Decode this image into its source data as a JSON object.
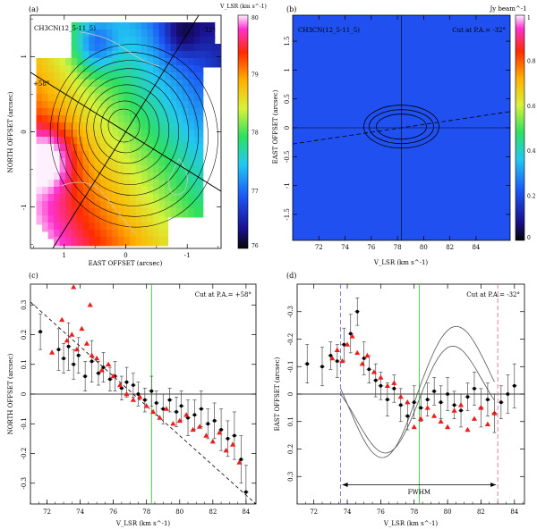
{
  "chart_data": [
    {
      "panel": "(a)",
      "type": "heatmap",
      "label": "CH3CN(12_5-11_5)",
      "xlabel": "EAST OFFSET (arcsec)",
      "ylabel": "NORTH OFFSET (arcsec)",
      "xlim": [
        1.55,
        -1.55
      ],
      "ylim": [
        -1.55,
        1.55
      ],
      "xticks": [
        "1",
        "0",
        "-1"
      ],
      "yticks": [
        "1",
        "0",
        "-1"
      ],
      "colorbar_title": "V_LSR (km s^-1)",
      "colorbar_range": [
        76,
        80
      ],
      "colorbar_ticks": [
        "80",
        "79",
        "78",
        "77",
        "76"
      ],
      "cut_labels": [
        "+58°",
        "-32°"
      ],
      "cut_angles_deg": [
        58,
        -32
      ],
      "velocity_field": {
        "x": [
          -1.3,
          -1.0,
          -0.6,
          -0.2,
          0.2,
          0.6,
          1.0,
          1.3
        ],
        "y": [
          1.4,
          1.0,
          0.6,
          0.2,
          -0.2,
          -0.6,
          -1.0,
          -1.4
        ],
        "note": "approx. velocities read from the color scale; red/magenta to the east/south-east (~79.5-80), blue to the north (~77)"
      }
    },
    {
      "panel": "(b)",
      "type": "heatmap",
      "label": "CH3CN(12_5-11_5)",
      "annotation": "Cut at P.A.= -32°",
      "xlabel": "V_LSR (km s^-1)",
      "ylabel": "EAST OFFSET (arcsec)",
      "xlim": [
        70.0,
        86.6
      ],
      "ylim": [
        1.95,
        -1.95
      ],
      "xticks": [
        "72",
        "74",
        "76",
        "78",
        "80",
        "82",
        "84"
      ],
      "yticks": [
        "-1.5",
        "-1",
        "-0.5",
        "0",
        "0.5",
        "1",
        "1.5"
      ],
      "colorbar_title": "Jy beam^-1",
      "colorbar_range": [
        0,
        1
      ],
      "colorbar_ticks": [
        "1",
        "0.8",
        "0.6",
        "0.4",
        "0.2",
        "0"
      ],
      "peak_velocity": 78.2,
      "peak_offset": 0.05
    },
    {
      "panel": "(c)",
      "type": "scatter",
      "annotation": "Cut at P.A.= +58°",
      "xlabel": "V_LSR (km s^-1)",
      "ylabel": "NORTH OFFSET (arcsec)",
      "xlim": [
        71.0,
        84.6
      ],
      "ylim": [
        -0.37,
        0.37
      ],
      "xticks": [
        "72",
        "74",
        "76",
        "78",
        "80",
        "82",
        "84"
      ],
      "yticks": [
        "-0.3",
        "-0.2",
        "-0.1",
        "0",
        "0.1",
        "0.2",
        "0.3"
      ],
      "vline_velocity": 78.3,
      "fit_line": [
        [
          71.0,
          0.31
        ],
        [
          84.6,
          -0.37
        ]
      ],
      "series": [
        {
          "marker": "circle",
          "color": "#000000",
          "x": [
            71.6,
            72.7,
            73.0,
            73.3,
            73.6,
            73.9,
            74.3,
            74.7,
            75.1,
            75.4,
            75.8,
            76.1,
            76.5,
            76.8,
            77.2,
            77.5,
            77.9,
            78.3,
            78.6,
            79.0,
            79.4,
            79.8,
            80.1,
            80.5,
            80.9,
            81.3,
            81.7,
            82.1,
            82.5,
            82.9,
            83.3,
            83.7,
            84.0
          ],
          "y": [
            0.21,
            0.15,
            0.12,
            0.16,
            0.1,
            0.13,
            0.06,
            0.11,
            0.07,
            0.09,
            0.05,
            0.06,
            0.02,
            0.04,
            0.03,
            0.0,
            -0.02,
            0.01,
            -0.03,
            -0.05,
            -0.02,
            -0.06,
            -0.04,
            -0.08,
            -0.07,
            -0.05,
            -0.1,
            -0.09,
            -0.12,
            -0.15,
            -0.14,
            -0.22,
            -0.33
          ],
          "yerr": [
            0.06,
            0.07,
            0.05,
            0.08,
            0.05,
            0.06,
            0.05,
            0.07,
            0.04,
            0.05,
            0.04,
            0.05,
            0.04,
            0.05,
            0.04,
            0.04,
            0.04,
            0.05,
            0.04,
            0.05,
            0.04,
            0.05,
            0.05,
            0.06,
            0.05,
            0.06,
            0.05,
            0.06,
            0.07,
            0.06,
            0.08,
            0.08,
            0.09
          ]
        },
        {
          "marker": "triangle",
          "color": "#ee1c1c",
          "x": [
            72.3,
            72.9,
            73.2,
            73.5,
            73.8,
            74.1,
            74.4,
            74.7,
            75.0,
            75.3,
            75.7,
            76.0,
            76.4,
            76.8,
            77.2,
            77.6,
            78.0,
            78.4,
            78.8,
            79.2,
            79.6,
            80.0,
            80.4,
            80.8,
            81.2,
            81.6,
            82.0,
            82.4,
            82.8,
            83.2,
            83.6,
            73.6,
            74.2,
            74.6
          ],
          "y": [
            0.14,
            0.25,
            0.18,
            0.2,
            0.15,
            0.22,
            0.17,
            0.13,
            0.12,
            0.08,
            0.1,
            0.06,
            0.03,
            0.0,
            -0.02,
            -0.01,
            -0.04,
            -0.06,
            -0.08,
            -0.05,
            -0.1,
            -0.09,
            -0.07,
            -0.12,
            -0.11,
            -0.14,
            -0.16,
            -0.13,
            -0.19,
            -0.17,
            -0.23,
            0.36,
            0.38,
            0.3
          ]
        }
      ]
    },
    {
      "panel": "(d)",
      "type": "scatter",
      "annotation": "Cut at P.A.= -32°",
      "xlabel": "V_LSR (km s^-1)",
      "ylabel": "EAST OFFSET (arcsec)",
      "xlim": [
        71.0,
        84.6
      ],
      "ylim": [
        0.4,
        -0.4
      ],
      "xticks": [
        "72",
        "74",
        "76",
        "78",
        "80",
        "82",
        "84"
      ],
      "yticks": [
        "-0.3",
        "-0.2",
        "-0.1",
        "0",
        "0.1",
        "0.2",
        "0.3"
      ],
      "vline_velocity": 78.3,
      "fwhm_lines": [
        73.6,
        83.0
      ],
      "fwhm_label": "FWHM",
      "series": [
        {
          "marker": "circle",
          "color": "#000000",
          "x": [
            71.6,
            72.5,
            73.0,
            73.4,
            73.8,
            74.2,
            74.6,
            75.0,
            75.3,
            75.7,
            76.0,
            76.4,
            76.8,
            77.2,
            77.6,
            78.0,
            78.4,
            78.8,
            79.2,
            79.6,
            80.0,
            80.4,
            80.8,
            81.2,
            81.6,
            82.0,
            82.4,
            82.8,
            83.2,
            83.6,
            84.0
          ],
          "y": [
            -0.11,
            -0.1,
            -0.14,
            -0.12,
            -0.18,
            -0.22,
            -0.3,
            -0.13,
            -0.09,
            -0.05,
            -0.03,
            0.02,
            -0.02,
            0.04,
            0.08,
            0.03,
            0.05,
            0.02,
            -0.01,
            0.03,
            0.0,
            0.04,
            0.06,
            0.01,
            -0.02,
            0.05,
            0.02,
            0.07,
            0.03,
            0.0,
            -0.03
          ],
          "yerr": [
            0.07,
            0.07,
            0.05,
            0.06,
            0.06,
            0.07,
            0.05,
            0.06,
            0.05,
            0.06,
            0.05,
            0.06,
            0.05,
            0.06,
            0.05,
            0.06,
            0.05,
            0.06,
            0.05,
            0.06,
            0.06,
            0.05,
            0.06,
            0.05,
            0.06,
            0.07,
            0.06,
            0.07,
            0.06,
            0.07,
            0.08
          ]
        },
        {
          "marker": "triangle",
          "color": "#ee1c1c",
          "x": [
            73.1,
            73.4,
            73.7,
            74.0,
            74.3,
            74.6,
            74.9,
            75.2,
            75.6,
            76.0,
            76.4,
            76.8,
            77.2,
            77.6,
            78.0,
            78.4,
            78.8,
            79.2,
            79.6,
            80.0,
            80.4,
            80.8,
            81.2,
            81.6,
            82.0,
            82.4,
            82.8
          ],
          "y": [
            -0.13,
            -0.16,
            -0.12,
            -0.18,
            -0.21,
            -0.15,
            -0.11,
            -0.14,
            -0.08,
            -0.06,
            -0.03,
            -0.04,
            0.01,
            0.03,
            0.12,
            0.09,
            0.05,
            0.08,
            0.1,
            0.12,
            0.06,
            0.04,
            0.13,
            0.09,
            0.05,
            0.11,
            0.07
          ]
        }
      ],
      "model_curves": "two solid model curves crossing between ~74 and ~83 km/s, reaching about -0.27 and +0.24"
    }
  ]
}
